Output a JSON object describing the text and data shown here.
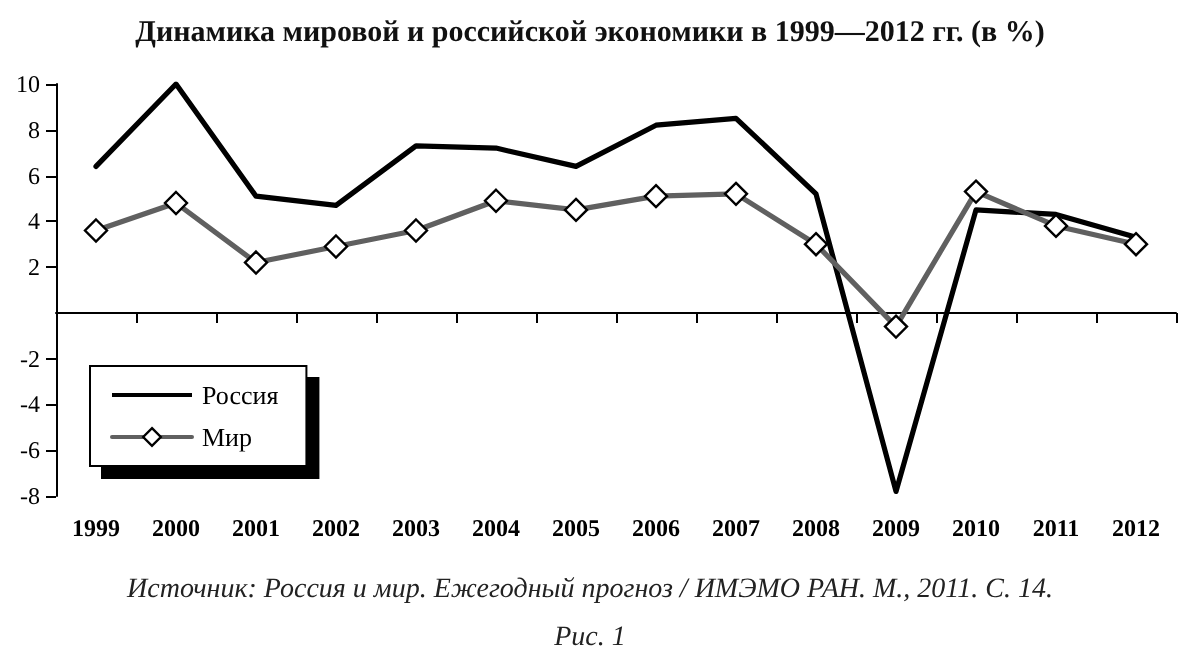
{
  "chart_data": {
    "type": "line",
    "title": "Динамика мировой и российской экономики в 1999—2012 гг. (в %)",
    "annotations": [
      "Источник: Россия и мир. Ежегодный прогноз / ИМЭМО РАН. М., 2011. С. 14.",
      "Рис. 1"
    ],
    "categories": [
      "1999",
      "2000",
      "2001",
      "2002",
      "2003",
      "2004",
      "2005",
      "2006",
      "2007",
      "2008",
      "2009",
      "2010",
      "2011",
      "2012"
    ],
    "series": [
      {
        "name": "Россия",
        "color": "#000000",
        "marker": "none",
        "values": [
          6.4,
          10.0,
          5.1,
          4.7,
          7.3,
          7.2,
          6.4,
          8.2,
          8.5,
          5.2,
          -7.8,
          4.5,
          4.3,
          3.3
        ]
      },
      {
        "name": "Мир",
        "color": "#606060",
        "marker": "diamond",
        "values": [
          3.6,
          4.8,
          2.2,
          2.9,
          3.6,
          4.9,
          4.5,
          5.1,
          5.2,
          3.0,
          -0.6,
          5.3,
          3.8,
          3.0
        ]
      }
    ],
    "ylim": [
      -8,
      10
    ],
    "yticks": [
      -8,
      -6,
      -4,
      -2,
      2,
      4,
      6,
      8,
      10
    ],
    "grid": false,
    "legend": "bottom left",
    "line_style": "solid"
  }
}
